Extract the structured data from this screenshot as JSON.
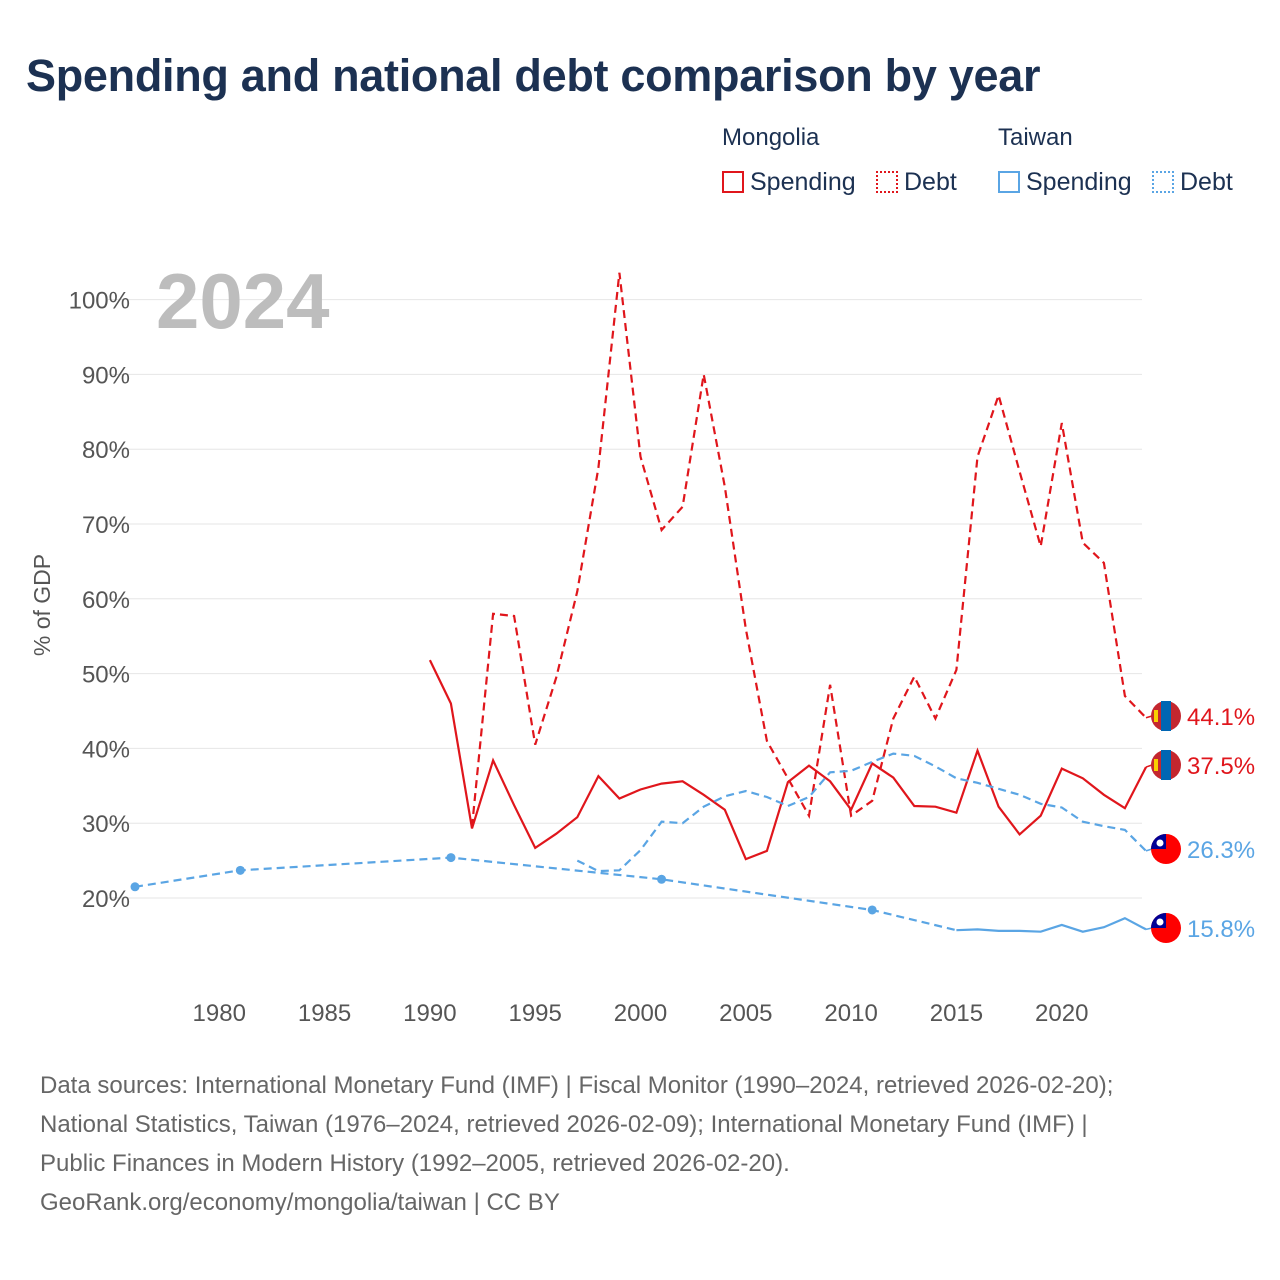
{
  "title": "Spending and national debt comparison by year",
  "year_label": "2024",
  "legend": {
    "mongolia": {
      "title": "Mongolia",
      "spending": "Spending",
      "debt": "Debt"
    },
    "taiwan": {
      "title": "Taiwan",
      "spending": "Spending",
      "debt": "Debt"
    }
  },
  "colors": {
    "mongolia": "#e0161c",
    "taiwan": "#5aa5e4",
    "title": "#1c3152",
    "grid": "#e6e6e6",
    "axis_text": "#555555"
  },
  "footer": {
    "line1": "Data sources: International Monetary Fund (IMF) | Fiscal Monitor (1990–2024, retrieved 2026-02-20);",
    "line2": "National Statistics, Taiwan (1976–2024, retrieved 2026-02-09); International Monetary Fund (IMF) |",
    "line3": "Public Finances in Modern History (1992–2005, retrieved 2026-02-20).",
    "line4": "GeoRank.org/economy/mongolia/taiwan | CC BY"
  },
  "chart_data": {
    "type": "line",
    "title": "Spending and national debt comparison by year",
    "ylabel": "% of GDP",
    "xlabel": "",
    "xlim": [
      1976,
      2024
    ],
    "ylim": [
      12,
      105
    ],
    "x_ticks": [
      1980,
      1985,
      1990,
      1995,
      2000,
      2005,
      2010,
      2015,
      2020
    ],
    "y_ticks": [
      20,
      30,
      40,
      50,
      60,
      70,
      80,
      90,
      100
    ],
    "y_tick_labels": [
      "20%",
      "30%",
      "40%",
      "50%",
      "60%",
      "70%",
      "80%",
      "90%",
      "100%"
    ],
    "grid": true,
    "series": [
      {
        "name": "Mongolia Debt",
        "country": "mongolia",
        "style": "dashed",
        "end_label": "44.1%",
        "points": [
          [
            1992,
            29.5
          ],
          [
            1993,
            58
          ],
          [
            1994,
            57.7
          ],
          [
            1995,
            40.5
          ],
          [
            1996,
            49.5
          ],
          [
            1997,
            61
          ],
          [
            1998,
            77.5
          ],
          [
            1999,
            103.6
          ],
          [
            2000,
            79
          ],
          [
            2001,
            69.2
          ],
          [
            2002,
            72.3
          ],
          [
            2003,
            90
          ],
          [
            2004,
            75
          ],
          [
            2005,
            56
          ],
          [
            2006,
            41
          ],
          [
            2007,
            36
          ],
          [
            2008,
            31
          ],
          [
            2009,
            48.5
          ],
          [
            2010,
            31
          ],
          [
            2011,
            33
          ],
          [
            2012,
            44
          ],
          [
            2013,
            49.6
          ],
          [
            2014,
            44
          ],
          [
            2015,
            50.5
          ],
          [
            2016,
            79
          ],
          [
            2017,
            87.2
          ],
          [
            2018,
            77
          ],
          [
            2019,
            67
          ],
          [
            2020,
            83.5
          ],
          [
            2021,
            67.5
          ],
          [
            2022,
            64.8
          ],
          [
            2023,
            47
          ],
          [
            2024,
            44.1
          ]
        ]
      },
      {
        "name": "Mongolia Spending",
        "country": "mongolia",
        "style": "solid",
        "end_label": "37.5%",
        "points": [
          [
            1990,
            51.8
          ],
          [
            1991,
            46
          ],
          [
            1992,
            29.3
          ],
          [
            1993,
            38.4
          ],
          [
            1994,
            32.4
          ],
          [
            1995,
            26.7
          ],
          [
            1996,
            28.6
          ],
          [
            1997,
            30.8
          ],
          [
            1998,
            36.3
          ],
          [
            1999,
            33.3
          ],
          [
            2000,
            34.5
          ],
          [
            2001,
            35.3
          ],
          [
            2002,
            35.6
          ],
          [
            2003,
            33.8
          ],
          [
            2004,
            31.8
          ],
          [
            2005,
            25.2
          ],
          [
            2006,
            26.3
          ],
          [
            2007,
            35.5
          ],
          [
            2008,
            37.7
          ],
          [
            2009,
            35.6
          ],
          [
            2010,
            31.8
          ],
          [
            2011,
            38
          ],
          [
            2012,
            36.1
          ],
          [
            2013,
            32.3
          ],
          [
            2014,
            32.2
          ],
          [
            2015,
            31.4
          ],
          [
            2016,
            39.7
          ],
          [
            2017,
            32.2
          ],
          [
            2018,
            28.5
          ],
          [
            2019,
            31
          ],
          [
            2020,
            37.3
          ],
          [
            2021,
            36
          ],
          [
            2022,
            33.8
          ],
          [
            2023,
            32
          ],
          [
            2024,
            37.5
          ]
        ]
      },
      {
        "name": "Taiwan Debt",
        "country": "taiwan",
        "style": "dashed",
        "end_label": "26.3%",
        "points": [
          [
            1997,
            25
          ],
          [
            1998,
            23.6
          ],
          [
            1999,
            23.7
          ],
          [
            2000,
            26.4
          ],
          [
            2001,
            30.2
          ],
          [
            2002,
            30
          ],
          [
            2003,
            32.2
          ],
          [
            2004,
            33.6
          ],
          [
            2005,
            34.3
          ],
          [
            2006,
            33.5
          ],
          [
            2007,
            32.3
          ],
          [
            2008,
            33.5
          ],
          [
            2009,
            36.8
          ],
          [
            2010,
            37
          ],
          [
            2011,
            38.2
          ],
          [
            2012,
            39.3
          ],
          [
            2013,
            39
          ],
          [
            2014,
            37.6
          ],
          [
            2015,
            36
          ],
          [
            2016,
            35.4
          ],
          [
            2017,
            34.6
          ],
          [
            2018,
            33.8
          ],
          [
            2019,
            32.6
          ],
          [
            2020,
            32.1
          ],
          [
            2021,
            30.2
          ],
          [
            2022,
            29.6
          ],
          [
            2023,
            29.1
          ],
          [
            2024,
            26.3
          ]
        ]
      },
      {
        "name": "Taiwan Spending",
        "country": "taiwan",
        "style": "mixed",
        "end_label": "15.8%",
        "points": [
          [
            1976,
            21.5
          ],
          [
            1981,
            23.7
          ],
          [
            1991,
            25.4
          ],
          [
            2001,
            22.5
          ],
          [
            2011,
            18.4
          ],
          [
            2015,
            15.7
          ],
          [
            2016,
            15.8
          ],
          [
            2017,
            15.6
          ],
          [
            2018,
            15.6
          ],
          [
            2019,
            15.5
          ],
          [
            2020,
            16.4
          ],
          [
            2021,
            15.5
          ],
          [
            2022,
            16.1
          ],
          [
            2023,
            17.3
          ],
          [
            2024,
            15.8
          ]
        ],
        "interpolated_until": 2015,
        "markers_at": [
          1976,
          1981,
          1991,
          2001,
          2011
        ]
      }
    ]
  }
}
